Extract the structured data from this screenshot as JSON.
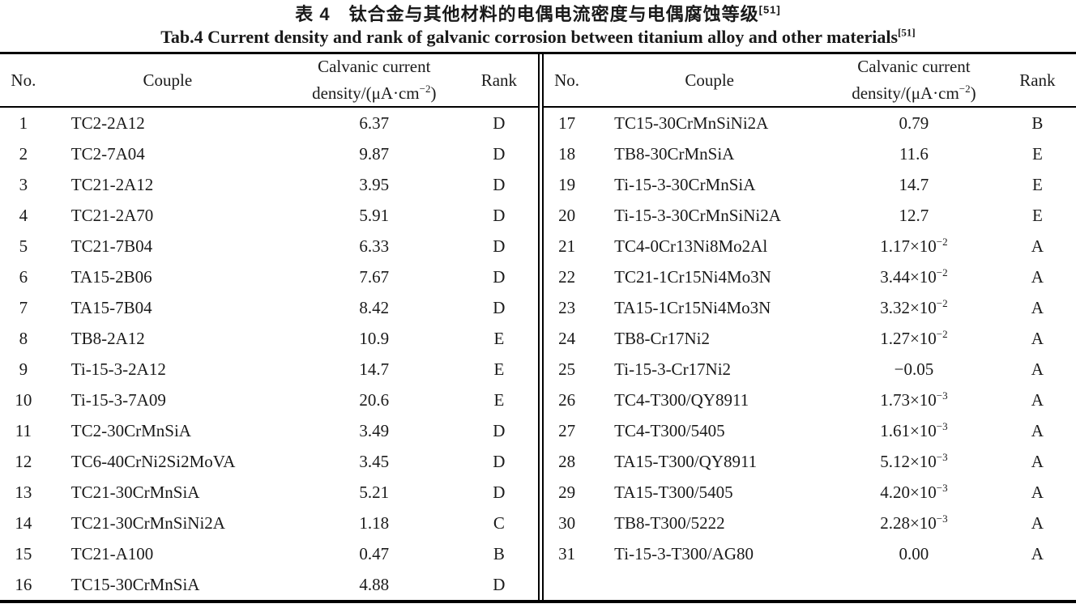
{
  "colors": {
    "background": "#ffffff",
    "text": "#1a1a1a",
    "rule": "#000000"
  },
  "caption": {
    "zh": "表 4　钛合金与其他材料的电偶电流密度与电偶腐蚀等级",
    "en": "Tab.4 Current density and rank of galvanic corrosion between titanium alloy and other materials",
    "citation": "[51]"
  },
  "table": {
    "header": {
      "no": "No.",
      "couple": "Couple",
      "density_line1": "Calvanic current",
      "density_line2": "density/(μA·cm^{−2})",
      "rank": "Rank"
    },
    "left_rows": [
      [
        "1",
        "TC2-2A12",
        "6.37",
        "D"
      ],
      [
        "2",
        "TC2-7A04",
        "9.87",
        "D"
      ],
      [
        "3",
        "TC21-2A12",
        "3.95",
        "D"
      ],
      [
        "4",
        "TC21-2A70",
        "5.91",
        "D"
      ],
      [
        "5",
        "TC21-7B04",
        "6.33",
        "D"
      ],
      [
        "6",
        "TA15-2B06",
        "7.67",
        "D"
      ],
      [
        "7",
        "TA15-7B04",
        "8.42",
        "D"
      ],
      [
        "8",
        "TB8-2A12",
        "10.9",
        "E"
      ],
      [
        "9",
        "Ti-15-3-2A12",
        "14.7",
        "E"
      ],
      [
        "10",
        "Ti-15-3-7A09",
        "20.6",
        "E"
      ],
      [
        "11",
        "TC2-30CrMnSiA",
        "3.49",
        "D"
      ],
      [
        "12",
        "TC6-40CrNi2Si2MoVA",
        "3.45",
        "D"
      ],
      [
        "13",
        "TC21-30CrMnSiA",
        "5.21",
        "D"
      ],
      [
        "14",
        "TC21-30CrMnSiNi2A",
        "1.18",
        "C"
      ],
      [
        "15",
        "TC21-A100",
        "0.47",
        "B"
      ],
      [
        "16",
        "TC15-30CrMnSiA",
        "4.88",
        "D"
      ]
    ],
    "right_rows": [
      [
        "17",
        "TC15-30CrMnSiNi2A",
        "0.79",
        "B"
      ],
      [
        "18",
        "TB8-30CrMnSiA",
        "11.6",
        "E"
      ],
      [
        "19",
        "Ti-15-3-30CrMnSiA",
        "14.7",
        "E"
      ],
      [
        "20",
        "Ti-15-3-30CrMnSiNi2A",
        "12.7",
        "E"
      ],
      [
        "21",
        "TC4-0Cr13Ni8Mo2Al",
        "1.17×10^{−2}",
        "A"
      ],
      [
        "22",
        "TC21-1Cr15Ni4Mo3N",
        "3.44×10^{−2}",
        "A"
      ],
      [
        "23",
        "TA15-1Cr15Ni4Mo3N",
        "3.32×10^{−2}",
        "A"
      ],
      [
        "24",
        "TB8-Cr17Ni2",
        "1.27×10^{−2}",
        "A"
      ],
      [
        "25",
        "Ti-15-3-Cr17Ni2",
        "−0.05",
        "A"
      ],
      [
        "26",
        "TC4-T300/QY8911",
        "1.73×10^{−3}",
        "A"
      ],
      [
        "27",
        "TC4-T300/5405",
        "1.61×10^{−3}",
        "A"
      ],
      [
        "28",
        "TA15-T300/QY8911",
        "5.12×10^{−3}",
        "A"
      ],
      [
        "29",
        "TA15-T300/5405",
        "4.20×10^{−3}",
        "A"
      ],
      [
        "30",
        "TB8-T300/5222",
        "2.28×10^{−3}",
        "A"
      ],
      [
        "31",
        "Ti-15-3-T300/AG80",
        "0.00",
        "A"
      ]
    ]
  }
}
